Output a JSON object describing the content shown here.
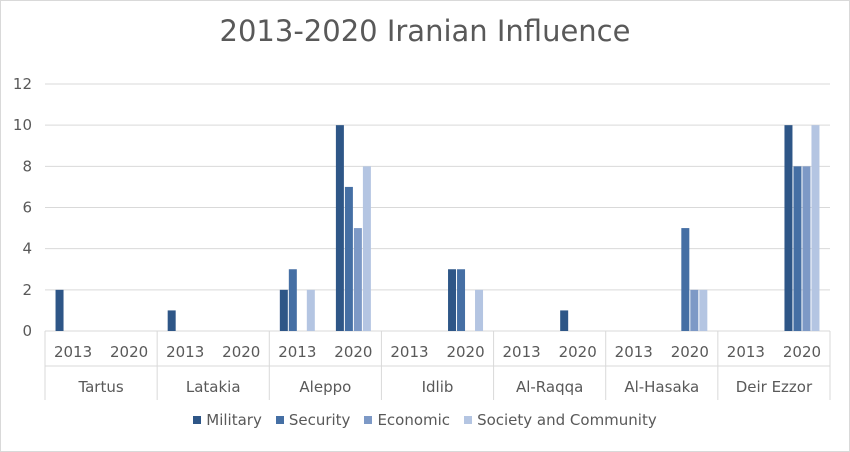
{
  "chart_data": {
    "type": "bar",
    "title": "2013-2020 Iranian Influence",
    "xlabel": "",
    "ylabel": "",
    "ylim": [
      0,
      12
    ],
    "yticks": [
      0,
      2,
      4,
      6,
      8,
      10,
      12
    ],
    "grid": true,
    "legend_position": "bottom",
    "groups": [
      "Tartus",
      "Latakia",
      "Aleppo",
      "Idlib",
      "Al-Raqqa",
      "Al-Hasaka",
      "Deir Ezzor"
    ],
    "years": [
      "2013",
      "2020"
    ],
    "series": [
      {
        "name": "Military",
        "color": "#2e5687",
        "values": [
          [
            2,
            0
          ],
          [
            1,
            0
          ],
          [
            2,
            10
          ],
          [
            0,
            3
          ],
          [
            0,
            1
          ],
          [
            0,
            0
          ],
          [
            0,
            10
          ]
        ]
      },
      {
        "name": "Security",
        "color": "#456fa4",
        "values": [
          [
            0,
            0
          ],
          [
            0,
            0
          ],
          [
            3,
            7
          ],
          [
            0,
            3
          ],
          [
            0,
            0
          ],
          [
            0,
            5
          ],
          [
            0,
            8
          ]
        ]
      },
      {
        "name": "Economic",
        "color": "#7d99c6",
        "values": [
          [
            0,
            0
          ],
          [
            0,
            0
          ],
          [
            0,
            5
          ],
          [
            0,
            0
          ],
          [
            0,
            0
          ],
          [
            0,
            2
          ],
          [
            0,
            8
          ]
        ]
      },
      {
        "name": "Society and Community",
        "color": "#b4c5e2",
        "values": [
          [
            0,
            0
          ],
          [
            0,
            0
          ],
          [
            2,
            8
          ],
          [
            0,
            2
          ],
          [
            0,
            0
          ],
          [
            0,
            2
          ],
          [
            0,
            10
          ]
        ]
      }
    ]
  }
}
